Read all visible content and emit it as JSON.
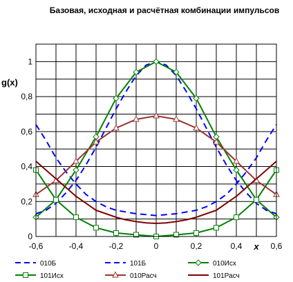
{
  "chart_data": {
    "type": "line",
    "title": "Базовая, исходная и расчётная комбинации импульсов",
    "xlabel": "x",
    "ylabel": "g(x)",
    "xlim": [
      -0.6,
      0.6
    ],
    "ylim": [
      0,
      1.1
    ],
    "x_ticks": [
      "-0,6",
      "-0,4",
      "-0,2",
      "0",
      "0,2",
      "0,4",
      "0,6"
    ],
    "y_ticks": [
      "0",
      "0,2",
      "0,4",
      "0,6",
      "0,8",
      "1"
    ],
    "grid": true,
    "legend_position": "bottom",
    "series": [
      {
        "name": "010Б",
        "color": "#0000ff",
        "style": "dash",
        "marker": "none",
        "x": [
          -0.6,
          -0.55,
          -0.5,
          -0.45,
          -0.4,
          -0.35,
          -0.3,
          -0.25,
          -0.2,
          -0.15,
          -0.1,
          -0.05,
          0,
          0.05,
          0.1,
          0.15,
          0.2,
          0.25,
          0.3,
          0.35,
          0.4,
          0.45,
          0.5,
          0.55,
          0.6
        ],
        "y": [
          0.13,
          0.15,
          0.19,
          0.25,
          0.32,
          0.41,
          0.51,
          0.62,
          0.73,
          0.83,
          0.92,
          0.98,
          1.0,
          0.98,
          0.92,
          0.83,
          0.73,
          0.62,
          0.51,
          0.41,
          0.32,
          0.25,
          0.19,
          0.15,
          0.13
        ]
      },
      {
        "name": "101Б",
        "color": "#0000ff",
        "style": "dash",
        "marker": "none",
        "x": [
          -0.6,
          -0.55,
          -0.5,
          -0.45,
          -0.4,
          -0.35,
          -0.3,
          -0.25,
          -0.2,
          -0.15,
          -0.1,
          -0.05,
          0,
          0.05,
          0.1,
          0.15,
          0.2,
          0.25,
          0.3,
          0.35,
          0.4,
          0.45,
          0.5,
          0.55,
          0.6
        ],
        "y": [
          0.64,
          0.55,
          0.45,
          0.37,
          0.3,
          0.24,
          0.2,
          0.17,
          0.15,
          0.14,
          0.13,
          0.125,
          0.12,
          0.125,
          0.13,
          0.14,
          0.15,
          0.17,
          0.2,
          0.24,
          0.3,
          0.37,
          0.45,
          0.55,
          0.64
        ]
      },
      {
        "name": "010Исх",
        "color": "#008000",
        "style": "solid",
        "marker": "diamond",
        "x": [
          -0.6,
          -0.5,
          -0.4,
          -0.3,
          -0.2,
          -0.1,
          0,
          0.1,
          0.2,
          0.3,
          0.4,
          0.5,
          0.6
        ],
        "y": [
          0.11,
          0.21,
          0.38,
          0.57,
          0.79,
          0.94,
          1.0,
          0.94,
          0.79,
          0.57,
          0.38,
          0.21,
          0.11
        ]
      },
      {
        "name": "101Исх",
        "color": "#008000",
        "style": "solid",
        "marker": "square",
        "x": [
          -0.6,
          -0.5,
          -0.4,
          -0.3,
          -0.2,
          -0.1,
          0,
          0.1,
          0.2,
          0.3,
          0.4,
          0.5,
          0.6
        ],
        "y": [
          0.38,
          0.21,
          0.11,
          0.05,
          0.02,
          0.01,
          0.0,
          0.01,
          0.02,
          0.05,
          0.11,
          0.21,
          0.38
        ]
      },
      {
        "name": "010Расч",
        "color": "#993333",
        "style": "solid",
        "marker": "triangle",
        "x": [
          -0.6,
          -0.5,
          -0.4,
          -0.3,
          -0.2,
          -0.1,
          0,
          0.1,
          0.2,
          0.3,
          0.4,
          0.5,
          0.6
        ],
        "y": [
          0.24,
          0.32,
          0.43,
          0.54,
          0.62,
          0.67,
          0.69,
          0.67,
          0.62,
          0.54,
          0.43,
          0.32,
          0.24
        ]
      },
      {
        "name": "101Расч",
        "color": "#800000",
        "style": "solid",
        "marker": "none",
        "x": [
          -0.6,
          -0.55,
          -0.5,
          -0.45,
          -0.4,
          -0.35,
          -0.3,
          -0.25,
          -0.2,
          -0.15,
          -0.1,
          -0.05,
          0,
          0.05,
          0.1,
          0.15,
          0.2,
          0.25,
          0.3,
          0.35,
          0.4,
          0.45,
          0.5,
          0.55,
          0.6
        ],
        "y": [
          0.43,
          0.38,
          0.33,
          0.28,
          0.23,
          0.19,
          0.15,
          0.13,
          0.11,
          0.095,
          0.085,
          0.078,
          0.075,
          0.078,
          0.085,
          0.095,
          0.11,
          0.13,
          0.15,
          0.19,
          0.23,
          0.28,
          0.33,
          0.38,
          0.43
        ]
      }
    ]
  }
}
